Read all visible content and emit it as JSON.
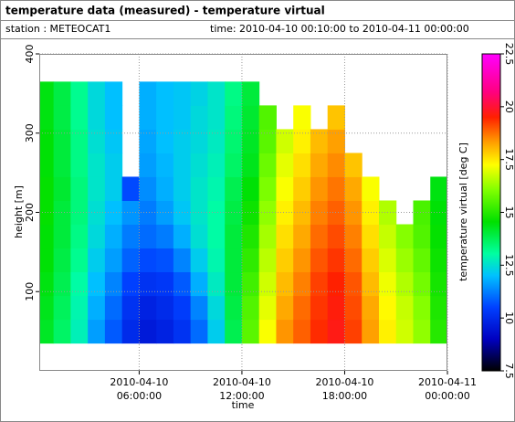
{
  "chart_data": {
    "type": "heatmap",
    "title": "temperature data (measured) - temperature virtual",
    "station": "station : METEOCAT1",
    "period": "time: 2010-04-10 00:10:00 to 2010-04-11 00:00:00",
    "x_label": "time",
    "y_label": "height [m]",
    "colorbar_label": "temperature virtual [deg C]",
    "xlim": [
      "2010-04-10 00:10:00",
      "2010-04-11 00:00:00"
    ],
    "xticks": [
      {
        "value": "2010-04-10 06:00:00",
        "label": [
          "2010-04-10",
          "06:00:00"
        ]
      },
      {
        "value": "2010-04-10 12:00:00",
        "label": [
          "2010-04-10",
          "12:00:00"
        ]
      },
      {
        "value": "2010-04-10 18:00:00",
        "label": [
          "2010-04-10",
          "18:00:00"
        ]
      },
      {
        "value": "2010-04-11 00:00:00",
        "label": [
          "2010-04-11",
          "00:00:00"
        ]
      }
    ],
    "ylim": [
      0,
      400
    ],
    "yticks": [
      100,
      200,
      300,
      400
    ],
    "clim": [
      7.5,
      22.5
    ],
    "cticks": [
      7.5,
      10,
      12.5,
      15,
      17.5,
      20,
      22.5
    ],
    "grid": true,
    "x": [
      "2010-04-10 00:30:00",
      "2010-04-10 01:30:00",
      "2010-04-10 02:30:00",
      "2010-04-10 03:30:00",
      "2010-04-10 04:30:00",
      "2010-04-10 05:30:00",
      "2010-04-10 06:30:00",
      "2010-04-10 07:30:00",
      "2010-04-10 08:30:00",
      "2010-04-10 09:30:00",
      "2010-04-10 10:30:00",
      "2010-04-10 11:30:00",
      "2010-04-10 12:30:00",
      "2010-04-10 13:30:00",
      "2010-04-10 14:30:00",
      "2010-04-10 15:30:00",
      "2010-04-10 16:30:00",
      "2010-04-10 17:30:00",
      "2010-04-10 18:30:00",
      "2010-04-10 19:30:00",
      "2010-04-10 20:30:00",
      "2010-04-10 21:30:00",
      "2010-04-10 22:30:00",
      "2010-04-10 23:30:00"
    ],
    "y": [
      50,
      80,
      110,
      140,
      170,
      200,
      230,
      260,
      290,
      320,
      350
    ],
    "z": [
      [
        14.2,
        14.3,
        14.4,
        14.5,
        14.5,
        14.6,
        14.6,
        14.5,
        14.5,
        14.4,
        14.4
      ],
      [
        13.6,
        13.7,
        13.8,
        13.9,
        14.0,
        14.0,
        14.1,
        14.0,
        14.0,
        13.9,
        13.9
      ],
      [
        12.8,
        12.9,
        13.0,
        13.2,
        13.3,
        13.4,
        13.4,
        13.3,
        13.3,
        13.2,
        13.2
      ],
      [
        11.6,
        11.8,
        12.0,
        12.2,
        12.4,
        12.5,
        12.6,
        12.6,
        12.5,
        12.4,
        12.4
      ],
      [
        10.8,
        11.0,
        11.3,
        11.6,
        11.8,
        12.0,
        12.2,
        12.2,
        12.1,
        12.0,
        12.0
      ],
      [
        10.0,
        10.2,
        10.5,
        10.9,
        11.2,
        11.5,
        10.6,
        null,
        null,
        null,
        null
      ],
      [
        9.6,
        9.8,
        10.2,
        10.6,
        11.0,
        11.2,
        11.4,
        11.6,
        11.7,
        11.8,
        11.8
      ],
      [
        9.8,
        10.0,
        10.3,
        10.7,
        11.2,
        11.6,
        11.8,
        11.9,
        12.0,
        12.0,
        12.0
      ],
      [
        10.2,
        10.4,
        10.8,
        11.3,
        11.8,
        12.1,
        12.2,
        12.2,
        12.2,
        12.1,
        12.1
      ],
      [
        11.0,
        11.3,
        11.8,
        12.2,
        12.5,
        12.6,
        12.6,
        12.5,
        12.4,
        12.4,
        12.3
      ],
      [
        12.2,
        12.4,
        12.7,
        12.9,
        13.0,
        13.0,
        12.9,
        12.8,
        12.7,
        12.6,
        12.6
      ],
      [
        13.8,
        13.9,
        14.0,
        14.0,
        14.0,
        13.9,
        13.8,
        13.6,
        13.5,
        13.4,
        13.3
      ],
      [
        15.6,
        15.5,
        15.3,
        15.1,
        14.9,
        14.7,
        14.5,
        14.3,
        14.2,
        14.1,
        14.0
      ],
      [
        17.2,
        17.0,
        16.8,
        16.6,
        16.4,
        16.2,
        16.0,
        15.8,
        15.6,
        15.5,
        null
      ],
      [
        18.4,
        18.2,
        18.0,
        17.8,
        17.6,
        17.4,
        17.2,
        17.0,
        16.8,
        null,
        null
      ],
      [
        18.9,
        18.8,
        18.6,
        18.4,
        18.2,
        18.0,
        17.8,
        17.6,
        17.4,
        17.2,
        null
      ],
      [
        19.4,
        19.3,
        19.2,
        19.0,
        18.8,
        18.6,
        18.4,
        18.2,
        18.0,
        null,
        null
      ],
      [
        19.7,
        19.6,
        19.5,
        19.3,
        19.1,
        18.9,
        18.7,
        18.5,
        18.3,
        17.9,
        null
      ],
      [
        19.2,
        19.1,
        19.0,
        18.8,
        18.6,
        18.4,
        18.2,
        17.9,
        null,
        null,
        null
      ],
      [
        18.3,
        18.2,
        18.0,
        17.8,
        17.6,
        17.4,
        17.2,
        null,
        null,
        null,
        null
      ],
      [
        17.4,
        17.3,
        17.1,
        16.9,
        16.7,
        16.5,
        null,
        null,
        null,
        null,
        null
      ],
      [
        16.8,
        16.7,
        16.5,
        16.3,
        16.1,
        null,
        null,
        null,
        null,
        null,
        null
      ],
      [
        16.2,
        16.1,
        15.9,
        15.7,
        15.5,
        15.4,
        null,
        null,
        null,
        null,
        null
      ],
      [
        15.0,
        14.9,
        14.8,
        14.7,
        14.6,
        14.5,
        14.4,
        null,
        null,
        null,
        null
      ]
    ]
  }
}
